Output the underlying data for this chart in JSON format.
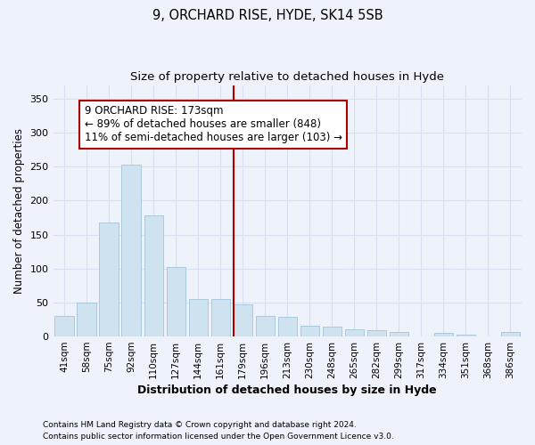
{
  "title": "9, ORCHARD RISE, HYDE, SK14 5SB",
  "subtitle": "Size of property relative to detached houses in Hyde",
  "xlabel": "Distribution of detached houses by size in Hyde",
  "ylabel": "Number of detached properties",
  "footnote1": "Contains HM Land Registry data © Crown copyright and database right 2024.",
  "footnote2": "Contains public sector information licensed under the Open Government Licence v3.0.",
  "bar_labels": [
    "41sqm",
    "58sqm",
    "75sqm",
    "92sqm",
    "110sqm",
    "127sqm",
    "144sqm",
    "161sqm",
    "179sqm",
    "196sqm",
    "213sqm",
    "230sqm",
    "248sqm",
    "265sqm",
    "282sqm",
    "299sqm",
    "317sqm",
    "334sqm",
    "351sqm",
    "368sqm",
    "386sqm"
  ],
  "bar_values": [
    30,
    50,
    168,
    253,
    178,
    102,
    55,
    55,
    47,
    30,
    29,
    16,
    15,
    11,
    9,
    7,
    0,
    5,
    3,
    0,
    6
  ],
  "bar_color": "#cfe2f0",
  "bar_edge_color": "#aac8df",
  "vline_x_index": 8,
  "vline_color": "#aa0000",
  "annotation_text": "9 ORCHARD RISE: 173sqm\n← 89% of detached houses are smaller (848)\n11% of semi-detached houses are larger (103) →",
  "annotation_box_color": "#ffffff",
  "annotation_box_edge_color": "#aa0000",
  "ylim": [
    0,
    370
  ],
  "yticks": [
    0,
    50,
    100,
    150,
    200,
    250,
    300,
    350
  ],
  "bg_color": "#eef2fa",
  "grid_color": "#d8dff0",
  "title_fontsize": 10.5,
  "subtitle_fontsize": 9.5,
  "xlabel_fontsize": 9,
  "ylabel_fontsize": 8.5,
  "tick_fontsize": 7.5,
  "annotation_fontsize": 8.5,
  "footnote_fontsize": 6.5
}
